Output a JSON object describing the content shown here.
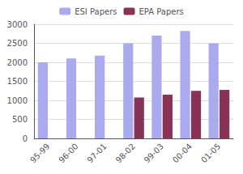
{
  "chart_data": {
    "type": "bar",
    "categories": [
      "95-99",
      "96-00",
      "97-01",
      "98-02",
      "99-03",
      "00-04",
      "01-05"
    ],
    "series": [
      {
        "name": "ESI Papers",
        "color": "#aaaaee",
        "values": [
          2000,
          2100,
          2175,
          2500,
          2700,
          2825,
          2500
        ]
      },
      {
        "name": "EPA Papers",
        "color": "#883355",
        "values": [
          null,
          null,
          null,
          1075,
          1150,
          1250,
          1275
        ]
      }
    ],
    "ylim": [
      0,
      3000
    ],
    "yticks": [
      0,
      500,
      1000,
      1500,
      2000,
      2500,
      3000
    ],
    "grid": true,
    "legend": "top"
  }
}
